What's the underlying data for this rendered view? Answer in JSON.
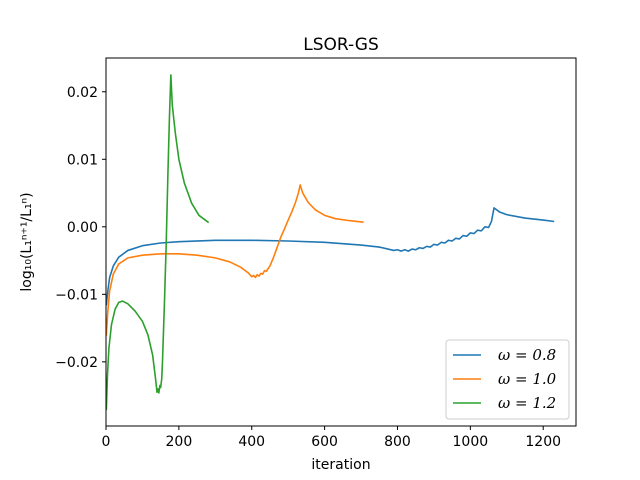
{
  "chart_data": {
    "type": "line",
    "title": "LSOR-GS",
    "xlabel": "iteration",
    "ylabel": "log₁₀(L₁ⁿ⁺¹/L₁ⁿ)",
    "xlim": [
      0,
      1290
    ],
    "ylim": [
      -0.0295,
      0.025
    ],
    "x_ticks": [
      0,
      200,
      400,
      600,
      800,
      1000,
      1200
    ],
    "x_tick_labels": [
      "0",
      "200",
      "400",
      "600",
      "800",
      "1000",
      "1200"
    ],
    "y_ticks": [
      -0.02,
      -0.01,
      0.0,
      0.01,
      0.02
    ],
    "y_tick_labels": [
      "−0.02",
      "−0.01",
      "0.00",
      "0.01",
      "0.02"
    ],
    "legend_position": "lower-right",
    "grid": false,
    "series": [
      {
        "name": "ω = 0.8",
        "color": "#1f77b4",
        "points": [
          [
            1,
            -0.0115
          ],
          [
            5,
            -0.0095
          ],
          [
            10,
            -0.0075
          ],
          [
            20,
            -0.0058
          ],
          [
            35,
            -0.0045
          ],
          [
            60,
            -0.0035
          ],
          [
            100,
            -0.0028
          ],
          [
            150,
            -0.0024
          ],
          [
            200,
            -0.0022
          ],
          [
            300,
            -0.002
          ],
          [
            400,
            -0.002
          ],
          [
            500,
            -0.0021
          ],
          [
            600,
            -0.0023
          ],
          [
            700,
            -0.0027
          ],
          [
            750,
            -0.003
          ],
          [
            790,
            -0.0035
          ],
          [
            800,
            -0.0034
          ],
          [
            810,
            -0.0036
          ],
          [
            820,
            -0.0034
          ],
          [
            830,
            -0.0036
          ],
          [
            840,
            -0.0033
          ],
          [
            850,
            -0.0034
          ],
          [
            860,
            -0.0031
          ],
          [
            870,
            -0.0032
          ],
          [
            880,
            -0.0029
          ],
          [
            890,
            -0.003
          ],
          [
            900,
            -0.0026
          ],
          [
            910,
            -0.0027
          ],
          [
            920,
            -0.0023
          ],
          [
            930,
            -0.0024
          ],
          [
            940,
            -0.002
          ],
          [
            950,
            -0.0021
          ],
          [
            960,
            -0.0017
          ],
          [
            970,
            -0.0018
          ],
          [
            980,
            -0.0013
          ],
          [
            990,
            -0.0014
          ],
          [
            1000,
            -0.0009
          ],
          [
            1010,
            -0.001
          ],
          [
            1020,
            -0.0005
          ],
          [
            1030,
            -0.0006
          ],
          [
            1040,
            0.0
          ],
          [
            1050,
            -0.0001
          ],
          [
            1058,
            0.0008
          ],
          [
            1065,
            0.0028
          ],
          [
            1080,
            0.0022
          ],
          [
            1100,
            0.0018
          ],
          [
            1150,
            0.0013
          ],
          [
            1200,
            0.001
          ],
          [
            1228,
            0.0008
          ]
        ]
      },
      {
        "name": "ω = 1.0",
        "color": "#ff7f0e",
        "points": [
          [
            1,
            -0.016
          ],
          [
            5,
            -0.0125
          ],
          [
            10,
            -0.0095
          ],
          [
            20,
            -0.007
          ],
          [
            35,
            -0.0055
          ],
          [
            60,
            -0.0046
          ],
          [
            100,
            -0.0042
          ],
          [
            150,
            -0.004
          ],
          [
            200,
            -0.004
          ],
          [
            250,
            -0.0042
          ],
          [
            300,
            -0.0046
          ],
          [
            340,
            -0.0052
          ],
          [
            370,
            -0.006
          ],
          [
            390,
            -0.0068
          ],
          [
            400,
            -0.0074
          ],
          [
            405,
            -0.0072
          ],
          [
            410,
            -0.0075
          ],
          [
            415,
            -0.0071
          ],
          [
            420,
            -0.0073
          ],
          [
            425,
            -0.0069
          ],
          [
            430,
            -0.007
          ],
          [
            435,
            -0.0065
          ],
          [
            440,
            -0.0066
          ],
          [
            450,
            -0.0058
          ],
          [
            460,
            -0.0045
          ],
          [
            470,
            -0.003
          ],
          [
            480,
            -0.0015
          ],
          [
            490,
            -0.0003
          ],
          [
            500,
            0.001
          ],
          [
            510,
            0.0022
          ],
          [
            520,
            0.0036
          ],
          [
            528,
            0.005
          ],
          [
            533,
            0.0062
          ],
          [
            540,
            0.005
          ],
          [
            555,
            0.0036
          ],
          [
            575,
            0.0025
          ],
          [
            600,
            0.0017
          ],
          [
            630,
            0.0012
          ],
          [
            670,
            0.0009
          ],
          [
            705,
            0.0007
          ]
        ]
      },
      {
        "name": "ω = 1.2",
        "color": "#2ca02c",
        "points": [
          [
            1,
            -0.027
          ],
          [
            4,
            -0.022
          ],
          [
            8,
            -0.018
          ],
          [
            15,
            -0.0145
          ],
          [
            25,
            -0.0122
          ],
          [
            35,
            -0.0112
          ],
          [
            45,
            -0.011
          ],
          [
            60,
            -0.0114
          ],
          [
            80,
            -0.0125
          ],
          [
            100,
            -0.014
          ],
          [
            115,
            -0.016
          ],
          [
            128,
            -0.019
          ],
          [
            136,
            -0.0225
          ],
          [
            140,
            -0.0245
          ],
          [
            143,
            -0.024
          ],
          [
            145,
            -0.0246
          ],
          [
            148,
            -0.0235
          ],
          [
            150,
            -0.0238
          ],
          [
            153,
            -0.0225
          ],
          [
            155,
            -0.02
          ],
          [
            160,
            -0.012
          ],
          [
            165,
            -0.003
          ],
          [
            170,
            0.008
          ],
          [
            174,
            0.016
          ],
          [
            178,
            0.0225
          ],
          [
            182,
            0.018
          ],
          [
            190,
            0.014
          ],
          [
            200,
            0.01
          ],
          [
            215,
            0.0065
          ],
          [
            235,
            0.0035
          ],
          [
            255,
            0.0017
          ],
          [
            280,
            0.0007
          ]
        ]
      }
    ]
  }
}
